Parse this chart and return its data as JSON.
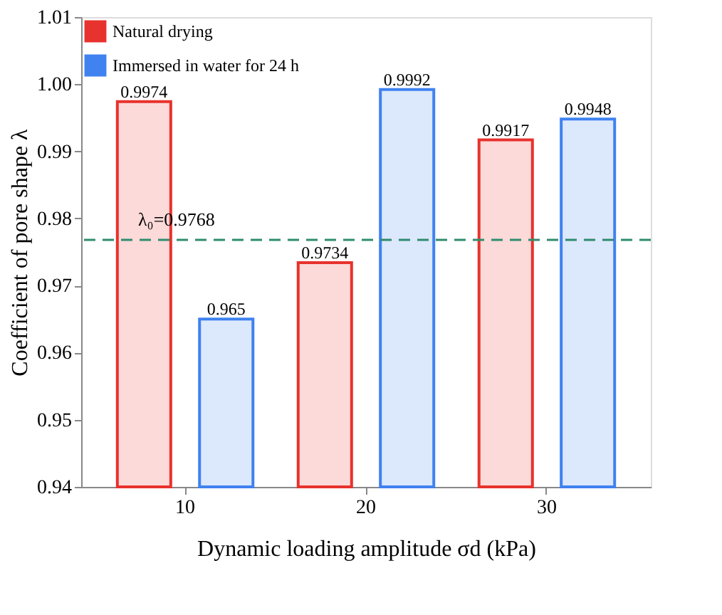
{
  "chart_data": {
    "type": "bar",
    "categories": [
      "10",
      "20",
      "30"
    ],
    "series": [
      {
        "name": "Natural drying",
        "color": "#e8322d",
        "values": [
          0.9974,
          0.9734,
          0.9917
        ]
      },
      {
        "name": "Immersed in water for 24 h",
        "color": "#3f82f0",
        "values": [
          0.965,
          0.9992,
          0.9948
        ]
      }
    ],
    "xlabel": "Dynamic loading amplitude σd (kPa)",
    "ylabel": "Coefficient of pore shape λ",
    "ylim": [
      0.94,
      1.01
    ],
    "yticks": [
      0.94,
      0.95,
      0.96,
      0.97,
      0.98,
      0.99,
      {
        "value": 1.0,
        "label": "1.00"
      },
      1.01
    ],
    "ref_lines": [
      {
        "axis": "y",
        "value": 0.9768,
        "label": "λ₀=0.9768",
        "color": "#2e8b6e",
        "line_style": "dashed"
      }
    ],
    "data_labels": true,
    "legend": "top left",
    "grid": false
  }
}
